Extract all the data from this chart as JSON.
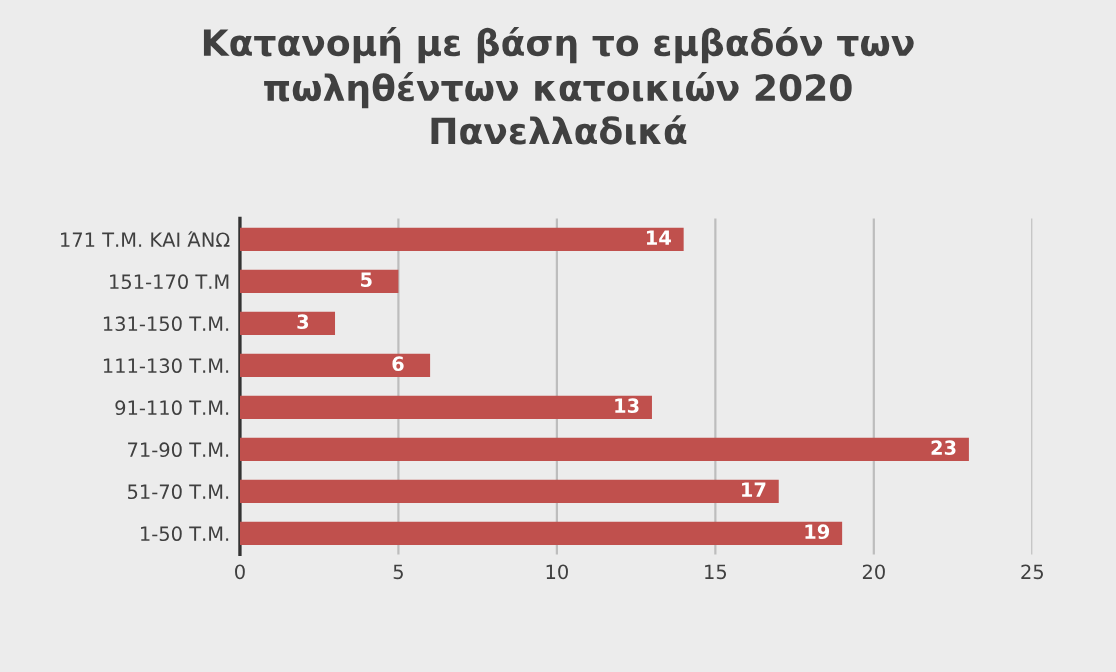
{
  "chart_data": {
    "type": "bar",
    "orientation": "horizontal",
    "title": "Κατανομή με βάση το εμβαδόν των\nπωληθέντων κατοικιών 2020\nΠανελλαδικά",
    "categories": [
      "171 Τ.Μ. ΚΑΙ ΆΝΩ",
      "151-170 Τ.Μ",
      "131-150 Τ.Μ.",
      "111-130 Τ.Μ.",
      "91-110 Τ.Μ.",
      "71-90 Τ.Μ.",
      "51-70 Τ.Μ.",
      "1-50 Τ.Μ."
    ],
    "values": [
      14,
      5,
      3,
      6,
      13,
      23,
      17,
      19
    ],
    "color": "#c0504d",
    "xlim": [
      0,
      25
    ],
    "xticks": [
      0,
      5,
      10,
      15,
      20,
      25
    ],
    "grid": "x",
    "data_labels": true
  }
}
